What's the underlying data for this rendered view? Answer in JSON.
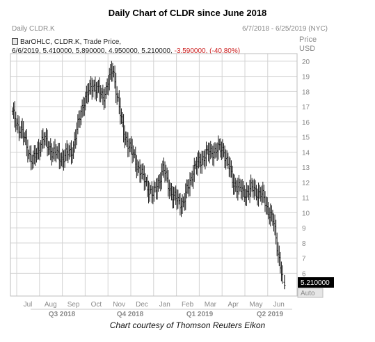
{
  "title": "Daily Chart of CLDR since June 2018",
  "ticker_label": "Daily CLDR.K",
  "date_range": "6/7/2018 - 6/25/2019 (NYC)",
  "legend_line1": "BarOHLC, CLDR.K, Trade Price,",
  "legend_values": "6/6/2019, 5.410000, 5.890000, 4.950000, 5.210000,",
  "legend_change": "-3.590000, (-40.80%)",
  "price_axis_title": "Price",
  "price_axis_unit": "USD",
  "last_price_label": "5.210000",
  "auto_label": "Auto",
  "footer": "Chart courtesy of Thomson Reuters Eikon",
  "colors": {
    "bars": "#1a1a1a",
    "grid": "#d3d3d3",
    "last_price_bg": "#000000",
    "change_negative": "#cc1f1f"
  },
  "chart_data": {
    "type": "bar",
    "style": "OHLC",
    "title": "Daily Chart of CLDR since June 2018",
    "ylabel": "Price USD",
    "ylim": [
      4.5,
      20.5
    ],
    "y_ticks": [
      6,
      7,
      8,
      9,
      10,
      11,
      12,
      13,
      14,
      15,
      16,
      17,
      18,
      19,
      20
    ],
    "x_month_labels": [
      "Jul",
      "Aug",
      "Sep",
      "Oct",
      "Nov",
      "Dec",
      "Jan",
      "Feb",
      "Mar",
      "Apr",
      "May",
      "Jun"
    ],
    "x_quarter_labels": [
      "Q3 2018",
      "Q4 2018",
      "Q1 2019",
      "Q2 2019"
    ],
    "grid": true,
    "last_bar": {
      "date": "6/6/2019",
      "open": 5.41,
      "high": 5.89,
      "low": 4.95,
      "close": 5.21
    },
    "series": [
      {
        "months": [
          "Jun",
          "Jun",
          "Jul",
          "Jul",
          "Jul",
          "Aug",
          "Aug",
          "Sep",
          "Sep",
          "Sep",
          "Oct",
          "Oct",
          "Oct",
          "Nov",
          "Nov",
          "Dec",
          "Dec",
          "Jan",
          "Jan",
          "Feb",
          "Feb",
          "Mar",
          "Mar",
          "Apr",
          "Apr",
          "May",
          "May",
          "Jun"
        ],
        "close_approx": [
          16.5,
          15.2,
          13.3,
          14.9,
          14.0,
          13.6,
          14.2,
          17.2,
          18.5,
          17.6,
          19.5,
          15.4,
          13.8,
          12.3,
          11.1,
          12.9,
          11.0,
          10.6,
          12.8,
          13.7,
          14.1,
          14.2,
          12.0,
          11.3,
          11.6,
          11.0,
          9.3,
          5.21
        ]
      }
    ]
  }
}
